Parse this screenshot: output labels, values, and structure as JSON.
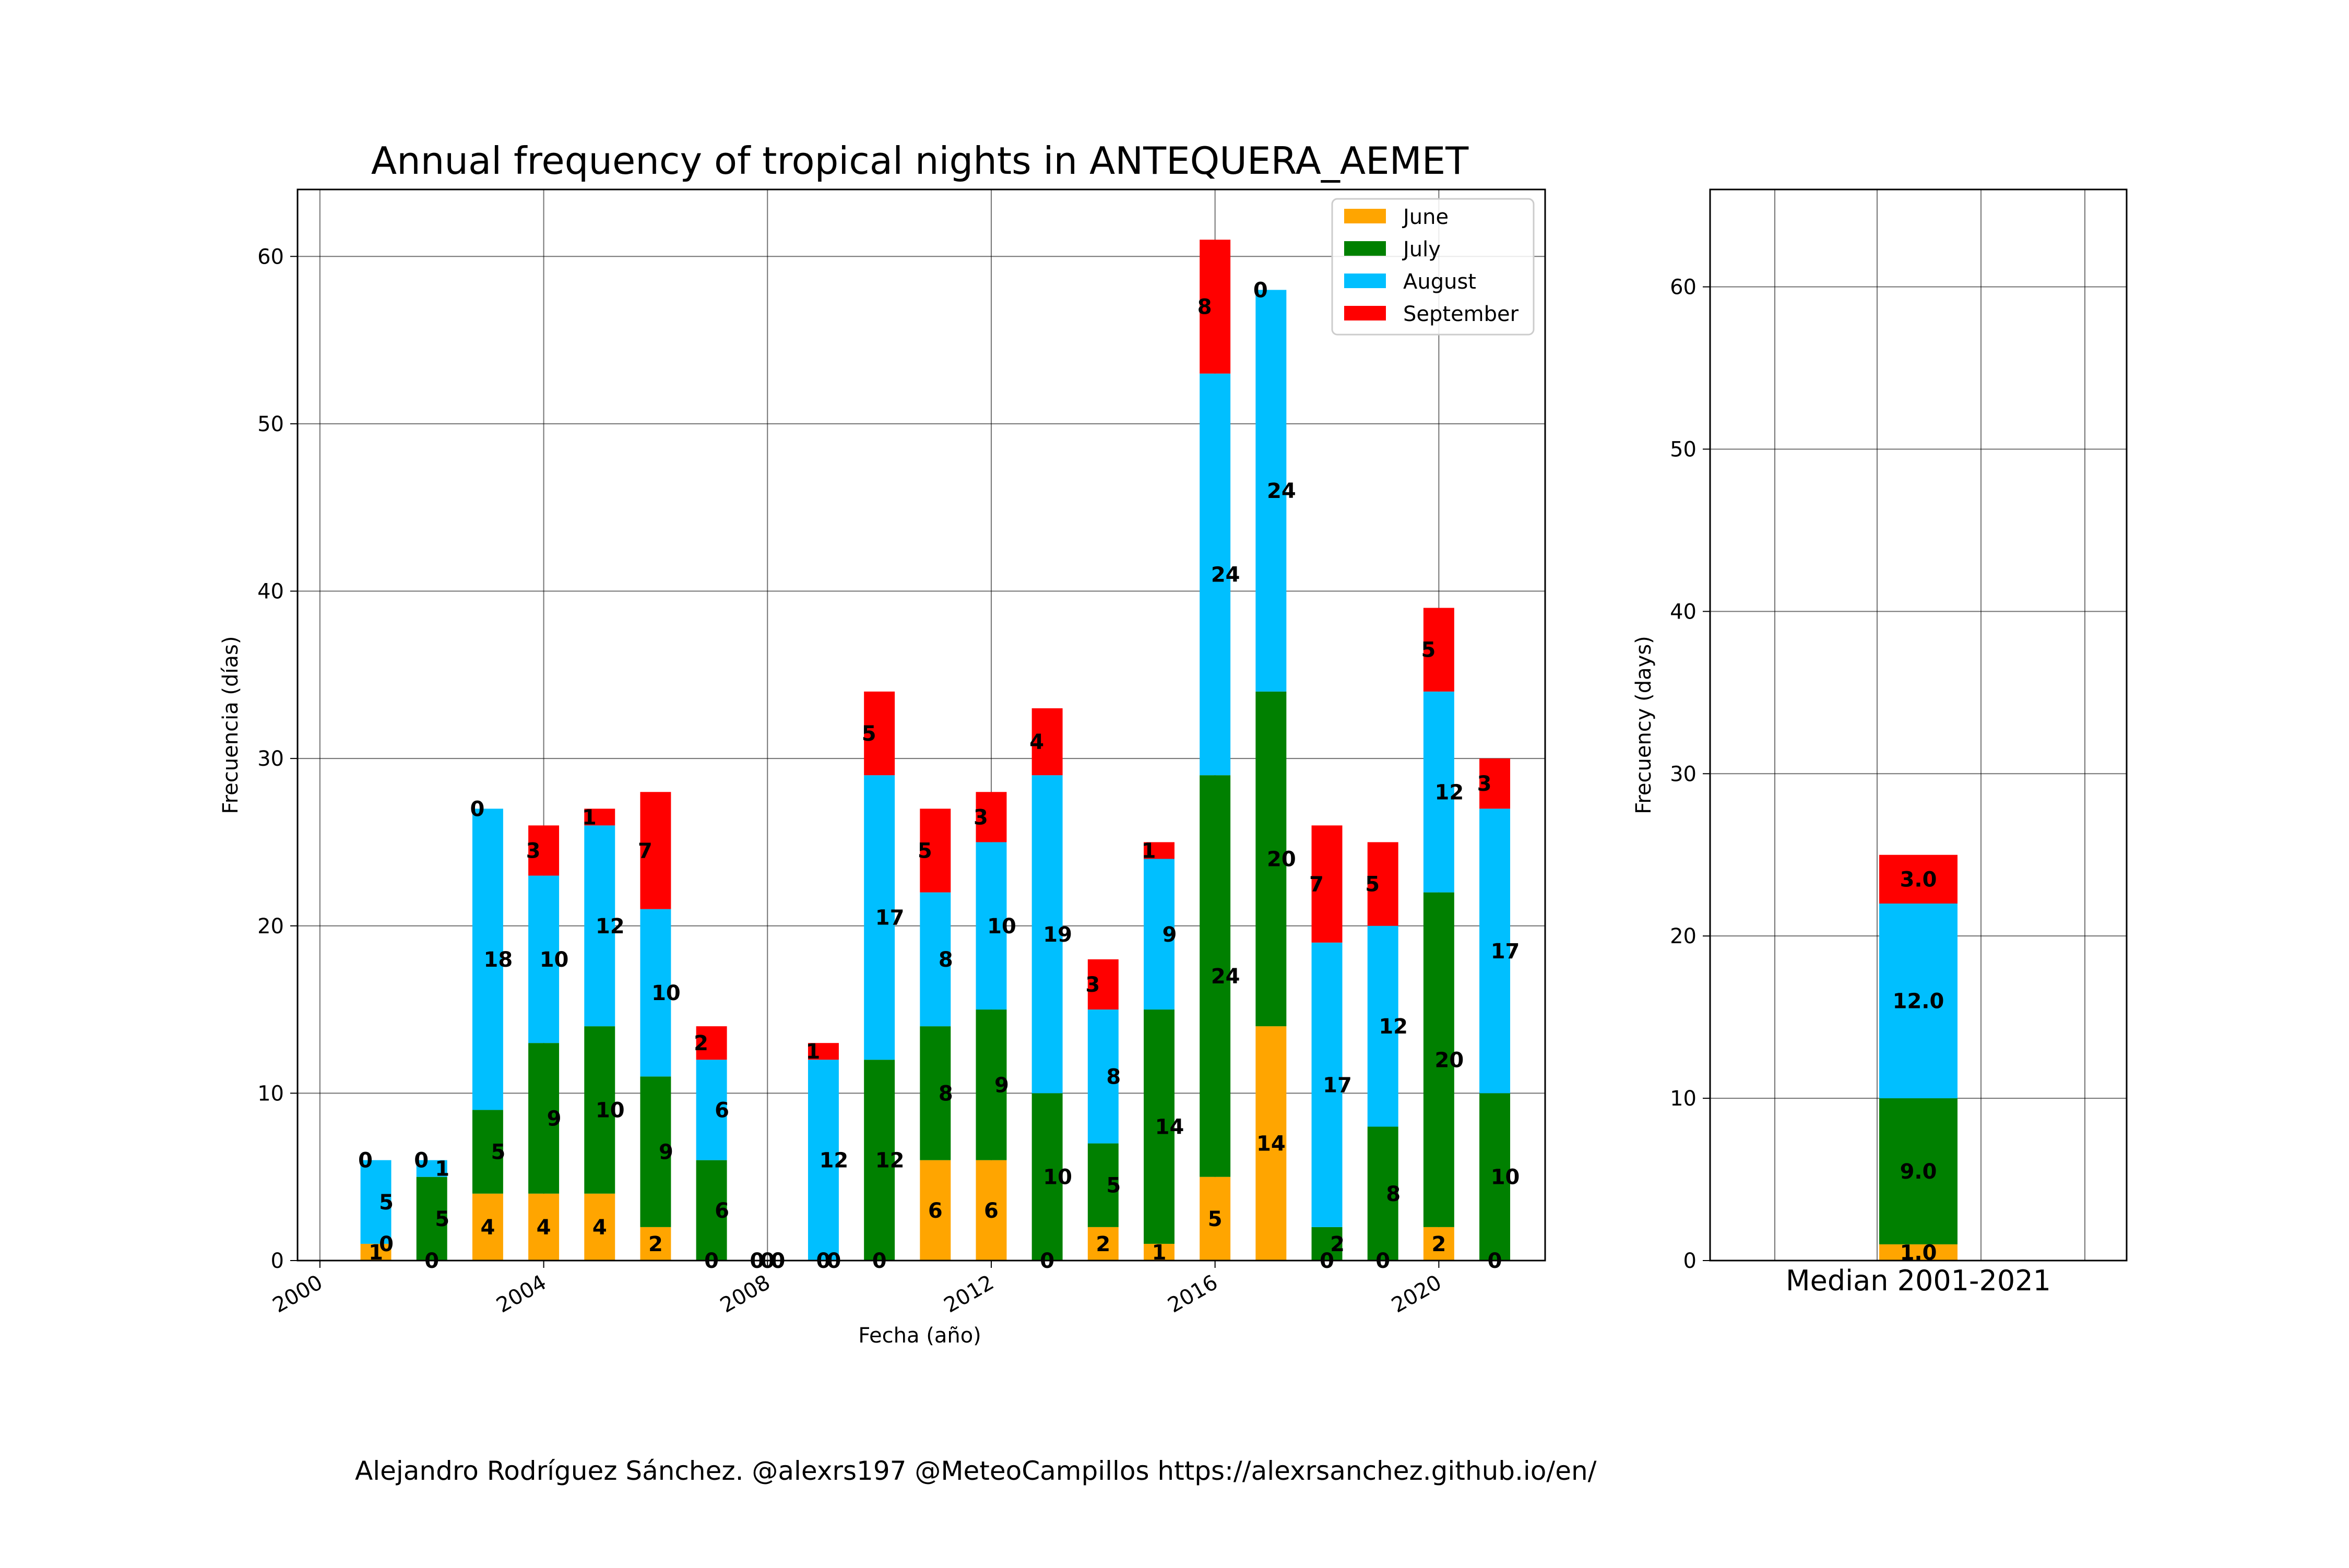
{
  "chart_data": [
    {
      "type": "bar",
      "stacked": true,
      "title": "Annual frequency of tropical nights in ANTEQUERA_AEMET",
      "xlabel": "Fecha (año)",
      "ylabel": "Frecuencia (días)",
      "xlim": [
        1999.6,
        2021.9
      ],
      "ylim": [
        0,
        64
      ],
      "grid": true,
      "legend_position": "top-right",
      "xticks": [
        2000,
        2004,
        2008,
        2012,
        2016,
        2020
      ],
      "xtick_labels": [
        "2000",
        "2004",
        "2008",
        "2012",
        "2016",
        "2020"
      ],
      "yticks": [
        0,
        10,
        20,
        30,
        40,
        50,
        60
      ],
      "ytick_labels": [
        "0",
        "10",
        "20",
        "30",
        "40",
        "50",
        "60"
      ],
      "categories": [
        2001,
        2002,
        2003,
        2004,
        2005,
        2006,
        2007,
        2008,
        2009,
        2010,
        2011,
        2012,
        2013,
        2014,
        2015,
        2016,
        2017,
        2018,
        2019,
        2020,
        2021
      ],
      "series": [
        {
          "name": "June",
          "color": "#FFA500",
          "values": [
            1,
            0,
            4,
            4,
            4,
            2,
            0,
            0,
            0,
            0,
            6,
            6,
            0,
            2,
            1,
            5,
            14,
            0,
            0,
            2,
            0
          ]
        },
        {
          "name": "July",
          "color": "#008000",
          "values": [
            0,
            5,
            5,
            9,
            10,
            9,
            6,
            0,
            0,
            12,
            8,
            9,
            10,
            5,
            14,
            24,
            20,
            2,
            8,
            20,
            10
          ]
        },
        {
          "name": "August",
          "color": "#00BFFF",
          "values": [
            5,
            1,
            18,
            10,
            12,
            10,
            6,
            0,
            12,
            17,
            8,
            10,
            19,
            8,
            9,
            24,
            24,
            17,
            12,
            12,
            17
          ]
        },
        {
          "name": "September",
          "color": "#FF0000",
          "values": [
            0,
            0,
            0,
            3,
            1,
            7,
            2,
            0,
            1,
            5,
            5,
            3,
            4,
            3,
            1,
            8,
            0,
            7,
            5,
            5,
            3
          ]
        }
      ],
      "data_labels": [
        [
          "1",
          "0",
          "4",
          "4",
          "4",
          "2",
          "0",
          "0",
          "0",
          "0",
          "6",
          "6",
          "0",
          "2",
          "1",
          "5",
          "14",
          "0",
          "0",
          "2",
          "0"
        ],
        [
          "0",
          "5",
          "5",
          "9",
          "10",
          "9",
          "6",
          "0",
          "0",
          "12",
          "8",
          "9",
          "10",
          "5",
          "14",
          "24",
          "20",
          "2",
          "8",
          "20",
          "10"
        ],
        [
          "5",
          "1",
          "18",
          "10",
          "12",
          "10",
          "6",
          "0",
          "12",
          "17",
          "8",
          "10",
          "19",
          "8",
          "9",
          "24",
          "24",
          "17",
          "12",
          "12",
          "17"
        ],
        [
          "0",
          "0",
          "0",
          "3",
          "1",
          "7",
          "2",
          "0",
          "1",
          "5",
          "5",
          "3",
          "4",
          "3",
          "1",
          "8",
          "0",
          "7",
          "5",
          "5",
          "3"
        ]
      ]
    },
    {
      "type": "bar",
      "stacked": true,
      "ylabel": "Frecuency (days)",
      "ylim": [
        0,
        66
      ],
      "grid": true,
      "categories": [
        "Median 2001-2021"
      ],
      "yticks": [
        0,
        10,
        20,
        30,
        40,
        50,
        60
      ],
      "ytick_labels": [
        "0",
        "10",
        "20",
        "30",
        "40",
        "50",
        "60"
      ],
      "series": [
        {
          "name": "June",
          "color": "#FFA500",
          "values": [
            1.0
          ]
        },
        {
          "name": "July",
          "color": "#008000",
          "values": [
            9.0
          ]
        },
        {
          "name": "August",
          "color": "#00BFFF",
          "values": [
            12.0
          ]
        },
        {
          "name": "September",
          "color": "#FF0000",
          "values": [
            3.0
          ]
        }
      ],
      "data_labels": [
        [
          "1.0"
        ],
        [
          "9.0"
        ],
        [
          "12.0"
        ],
        [
          "3.0"
        ]
      ]
    }
  ],
  "footer": {
    "credit": "Alejandro Rodríguez Sánchez. @alexrs197 @MeteoCampillos   https://alexrsanchez.github.io/en/"
  }
}
